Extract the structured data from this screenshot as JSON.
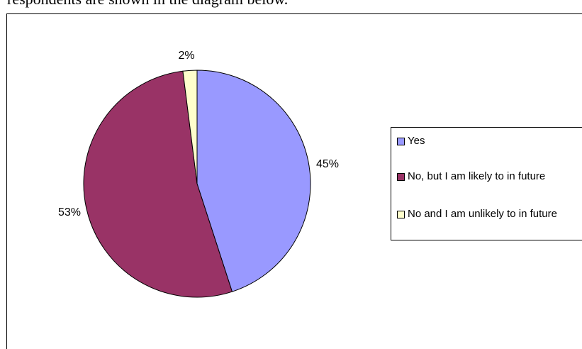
{
  "header": {
    "text": "respondents are shown in the diagram below."
  },
  "chart_data": {
    "type": "pie",
    "title": "",
    "categories": [
      "Yes",
      "No, but I am likely to in future",
      "No and I am unlikely to in future"
    ],
    "values": [
      45,
      53,
      2
    ],
    "labels": [
      "45%",
      "53%",
      "2%"
    ],
    "colors": [
      "#9999ff",
      "#993366",
      "#ffffcc"
    ],
    "start_angle_deg": 0,
    "direction": "clockwise",
    "legend_position": "right"
  }
}
